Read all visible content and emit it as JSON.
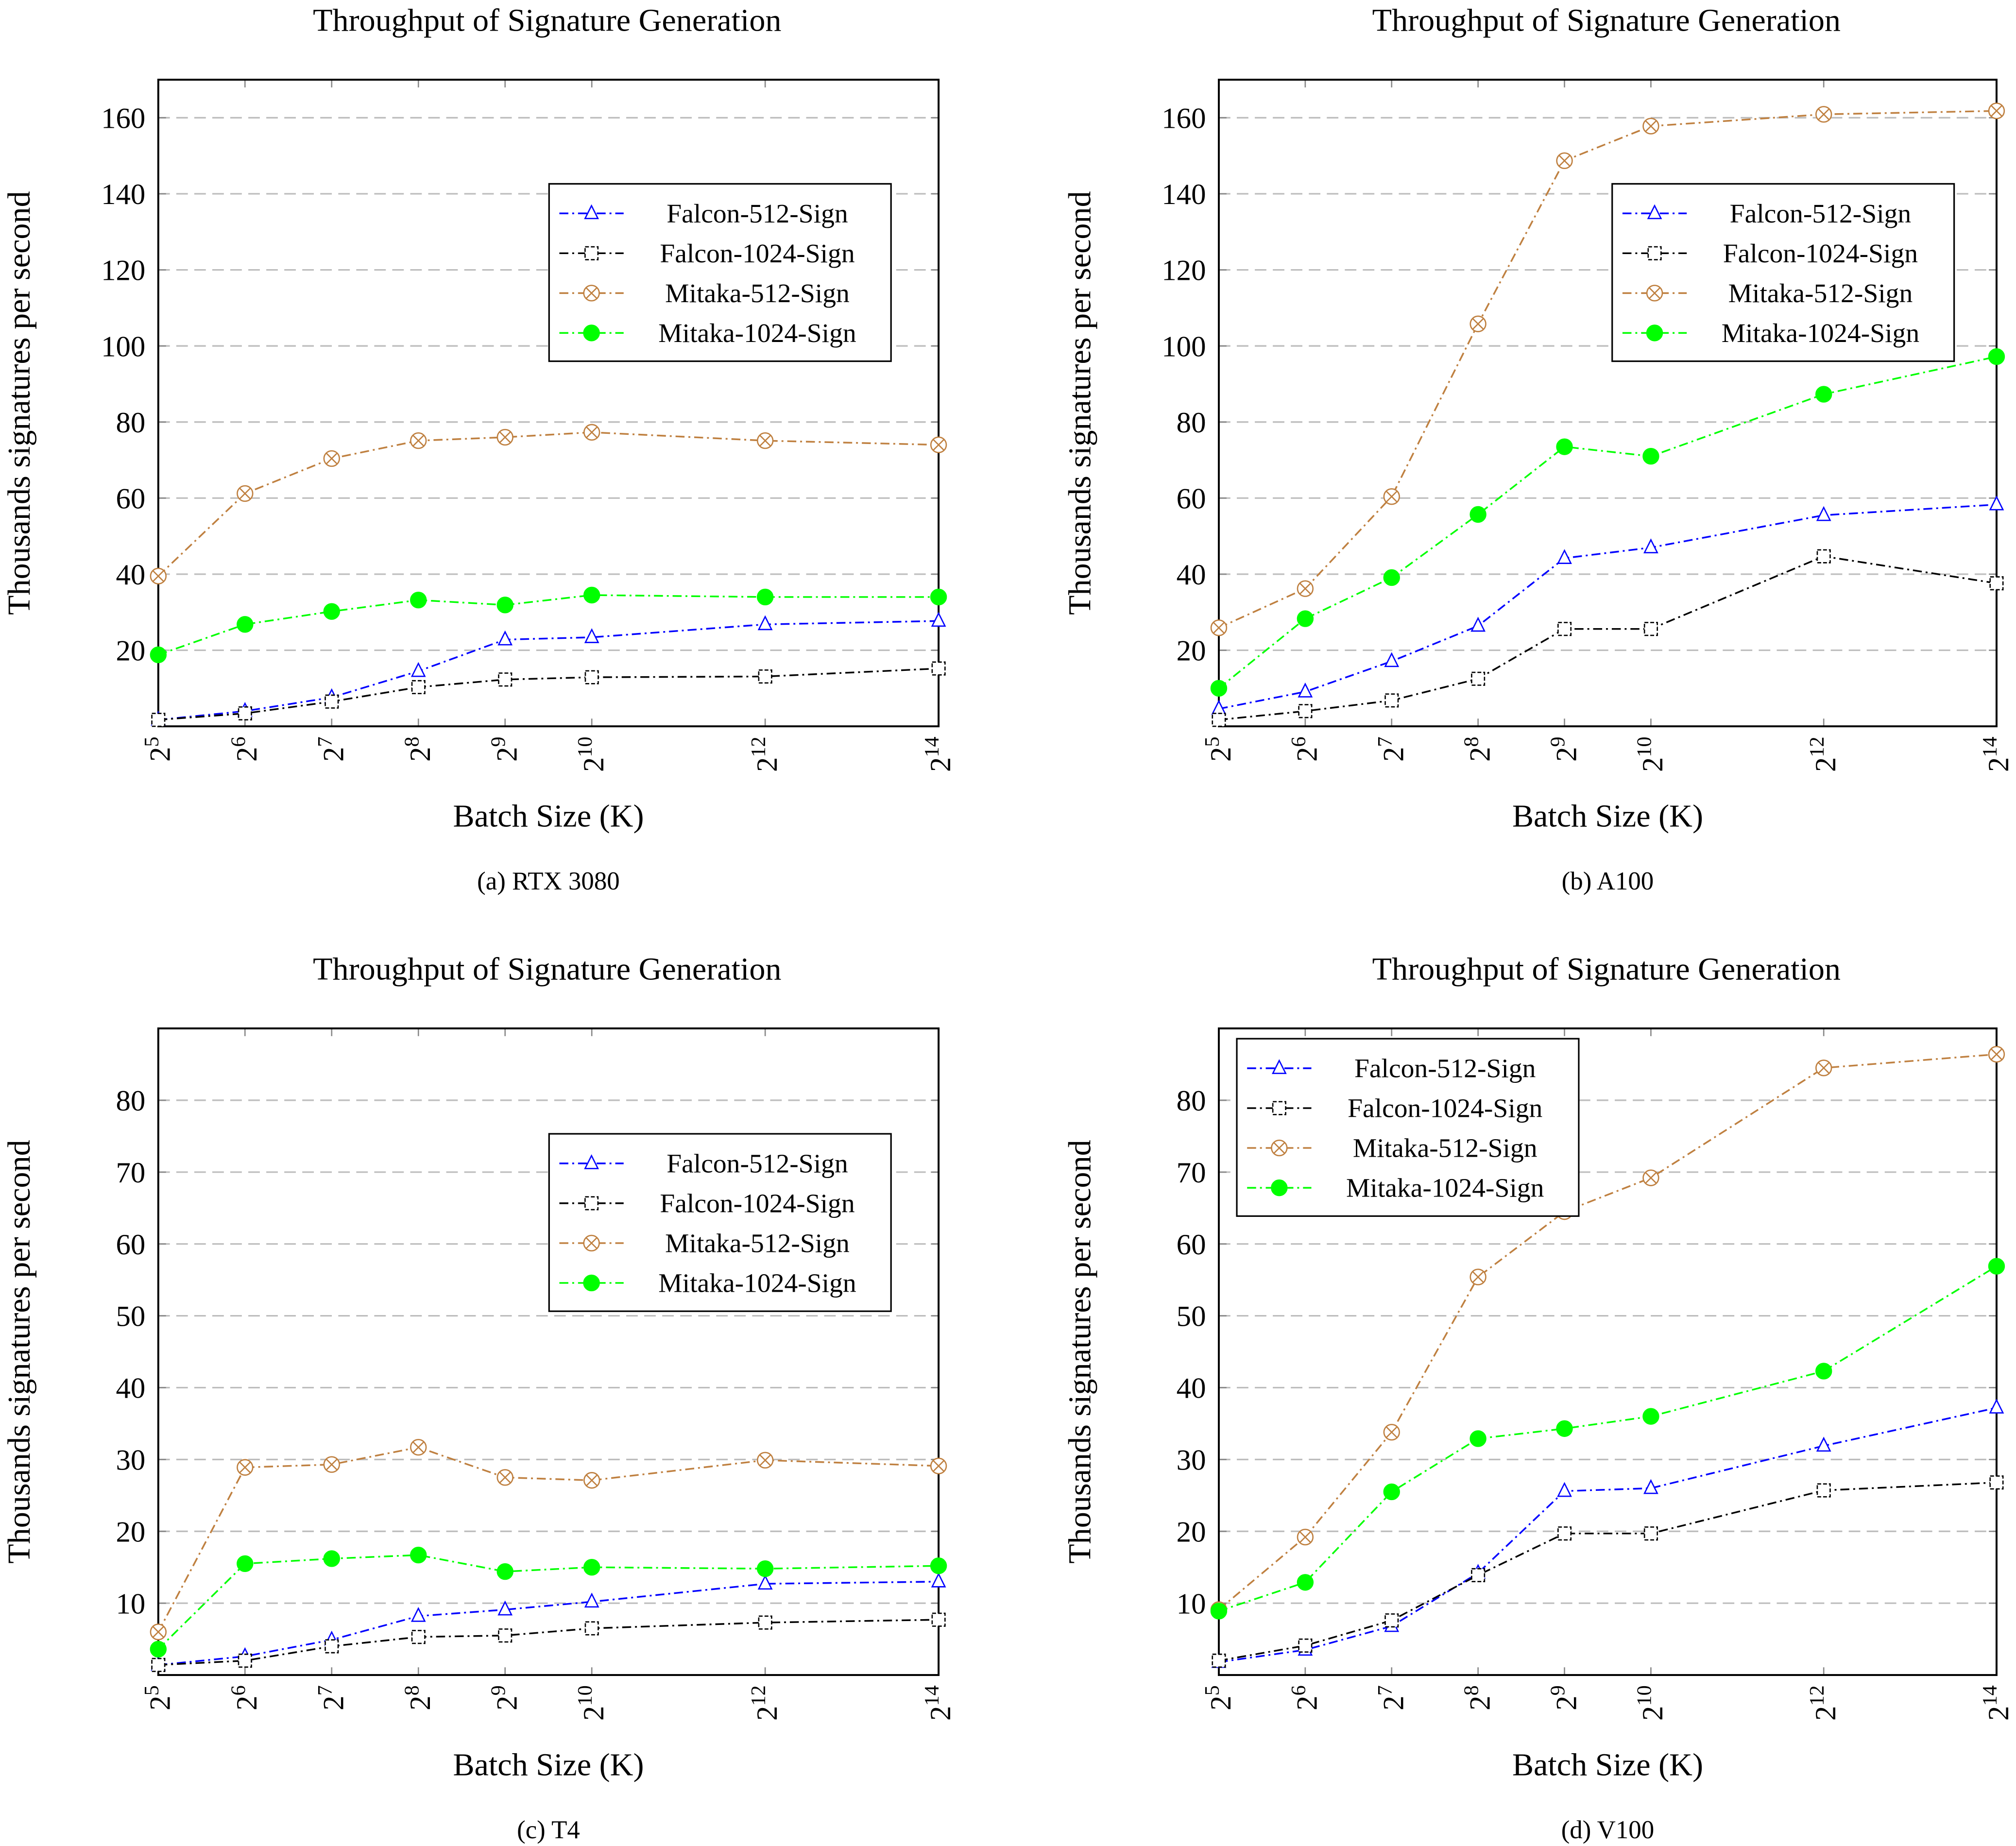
{
  "chart_data": [
    {
      "type": "line",
      "title": "Throughput of Signature Generation",
      "caption": "(a) RTX 3080",
      "xlabel": "Batch Size (K)",
      "ylabel": "Thousands signatures per second",
      "xscale": "log2",
      "x": [
        32,
        64,
        128,
        256,
        512,
        1024,
        4096,
        16384
      ],
      "x_tick_labels": [
        "2^5",
        "2^6",
        "2^7",
        "2^8",
        "2^9",
        "2^10",
        "2^12",
        "2^14"
      ],
      "ylim": [
        0,
        170
      ],
      "yticks": [
        20,
        40,
        60,
        80,
        100,
        120,
        140,
        160
      ],
      "grid": "horizontal dashed",
      "legend": "top-right",
      "series": [
        {
          "name": "Falcon-512-Sign",
          "color": "#0000ff",
          "marker": "triangle-open",
          "values": [
            1.7,
            4.0,
            7.6,
            14.5,
            22.8,
            23.4,
            26.8,
            27.7
          ]
        },
        {
          "name": "Falcon-1024-Sign",
          "color": "#000000",
          "marker": "square-open",
          "values": [
            1.7,
            3.4,
            6.5,
            10.3,
            12.3,
            12.9,
            13.1,
            15.2
          ]
        },
        {
          "name": "Mitaka-512-Sign",
          "color": "#bf8040",
          "marker": "circled-x",
          "values": [
            39.5,
            61.2,
            70.4,
            75.1,
            76.0,
            77.3,
            75.1,
            74.0
          ]
        },
        {
          "name": "Mitaka-1024-Sign",
          "color": "#00ff00",
          "marker": "filled-circle",
          "values": [
            18.8,
            26.8,
            30.2,
            33.2,
            31.9,
            34.5,
            34.0,
            34.0
          ]
        }
      ]
    },
    {
      "type": "line",
      "title": "Throughput of Signature Generation",
      "caption": "(b) A100",
      "xlabel": "Batch Size (K)",
      "ylabel": "Thousands signatures per second",
      "xscale": "log2",
      "x": [
        32,
        64,
        128,
        256,
        512,
        1024,
        4096,
        16384
      ],
      "x_tick_labels": [
        "2^5",
        "2^6",
        "2^7",
        "2^8",
        "2^9",
        "2^10",
        "2^12",
        "2^14"
      ],
      "ylim": [
        0,
        170
      ],
      "yticks": [
        20,
        40,
        60,
        80,
        100,
        120,
        140,
        160
      ],
      "grid": "horizontal dashed",
      "legend": "top-right",
      "series": [
        {
          "name": "Falcon-512-Sign",
          "color": "#0000ff",
          "marker": "triangle-open",
          "values": [
            4.6,
            9.1,
            17.1,
            26.4,
            44.2,
            47.0,
            55.5,
            58.3
          ]
        },
        {
          "name": "Falcon-1024-Sign",
          "color": "#000000",
          "marker": "square-open",
          "values": [
            1.7,
            4.0,
            6.8,
            12.5,
            25.6,
            25.6,
            44.7,
            37.6
          ]
        },
        {
          "name": "Mitaka-512-Sign",
          "color": "#bf8040",
          "marker": "circled-x",
          "values": [
            25.9,
            36.2,
            60.4,
            105.8,
            148.7,
            157.8,
            160.9,
            161.8
          ]
        },
        {
          "name": "Mitaka-1024-Sign",
          "color": "#00ff00",
          "marker": "filled-circle",
          "values": [
            10.0,
            28.3,
            39.1,
            55.7,
            73.5,
            71.0,
            87.3,
            97.2
          ]
        }
      ]
    },
    {
      "type": "line",
      "title": "Throughput of Signature Generation",
      "caption": "(c) T4",
      "xlabel": "Batch Size (K)",
      "ylabel": "Thousands signatures per second",
      "xscale": "log2",
      "x": [
        32,
        64,
        128,
        256,
        512,
        1024,
        4096,
        16384
      ],
      "x_tick_labels": [
        "2^5",
        "2^6",
        "2^7",
        "2^8",
        "2^9",
        "2^10",
        "2^12",
        "2^14"
      ],
      "ylim": [
        0,
        90
      ],
      "yticks": [
        10,
        20,
        30,
        40,
        50,
        60,
        70,
        80
      ],
      "grid": "horizontal dashed",
      "legend": "top-right",
      "series": [
        {
          "name": "Falcon-512-Sign",
          "color": "#0000ff",
          "marker": "triangle-open",
          "values": [
            1.4,
            2.6,
            4.9,
            8.2,
            9.1,
            10.2,
            12.7,
            13.0
          ]
        },
        {
          "name": "Falcon-1024-Sign",
          "color": "#000000",
          "marker": "square-open",
          "values": [
            1.4,
            2.0,
            4.0,
            5.3,
            5.5,
            6.5,
            7.3,
            7.7
          ]
        },
        {
          "name": "Mitaka-512-Sign",
          "color": "#bf8040",
          "marker": "circled-x",
          "values": [
            6.0,
            28.9,
            29.3,
            31.7,
            27.5,
            27.1,
            29.9,
            29.1
          ]
        },
        {
          "name": "Mitaka-1024-Sign",
          "color": "#00ff00",
          "marker": "filled-circle",
          "values": [
            3.6,
            15.5,
            16.2,
            16.7,
            14.4,
            15.0,
            14.8,
            15.2
          ]
        }
      ]
    },
    {
      "type": "line",
      "title": "Throughput of Signature Generation",
      "caption": "(d) V100",
      "xlabel": "Batch Size (K)",
      "ylabel": "Thousands signatures per second",
      "xscale": "log2",
      "x": [
        32,
        64,
        128,
        256,
        512,
        1024,
        4096,
        16384
      ],
      "x_tick_labels": [
        "2^5",
        "2^6",
        "2^7",
        "2^8",
        "2^9",
        "2^10",
        "2^12",
        "2^14"
      ],
      "ylim": [
        0,
        90
      ],
      "yticks": [
        10,
        20,
        30,
        40,
        50,
        60,
        70,
        80
      ],
      "grid": "horizontal dashed",
      "legend": "top-left",
      "series": [
        {
          "name": "Falcon-512-Sign",
          "color": "#0000ff",
          "marker": "triangle-open",
          "values": [
            1.8,
            3.5,
            6.8,
            14.2,
            25.6,
            26.0,
            31.9,
            37.2
          ]
        },
        {
          "name": "Falcon-1024-Sign",
          "color": "#000000",
          "marker": "square-open",
          "values": [
            2.0,
            4.1,
            7.6,
            13.9,
            19.7,
            19.7,
            25.7,
            26.8
          ]
        },
        {
          "name": "Mitaka-512-Sign",
          "color": "#bf8040",
          "marker": "circled-x",
          "values": [
            9.1,
            19.2,
            33.8,
            55.4,
            64.5,
            69.2,
            84.5,
            86.4
          ]
        },
        {
          "name": "Mitaka-1024-Sign",
          "color": "#00ff00",
          "marker": "filled-circle",
          "values": [
            8.9,
            12.9,
            25.5,
            32.9,
            34.3,
            36.0,
            42.3,
            56.9
          ]
        }
      ]
    }
  ]
}
